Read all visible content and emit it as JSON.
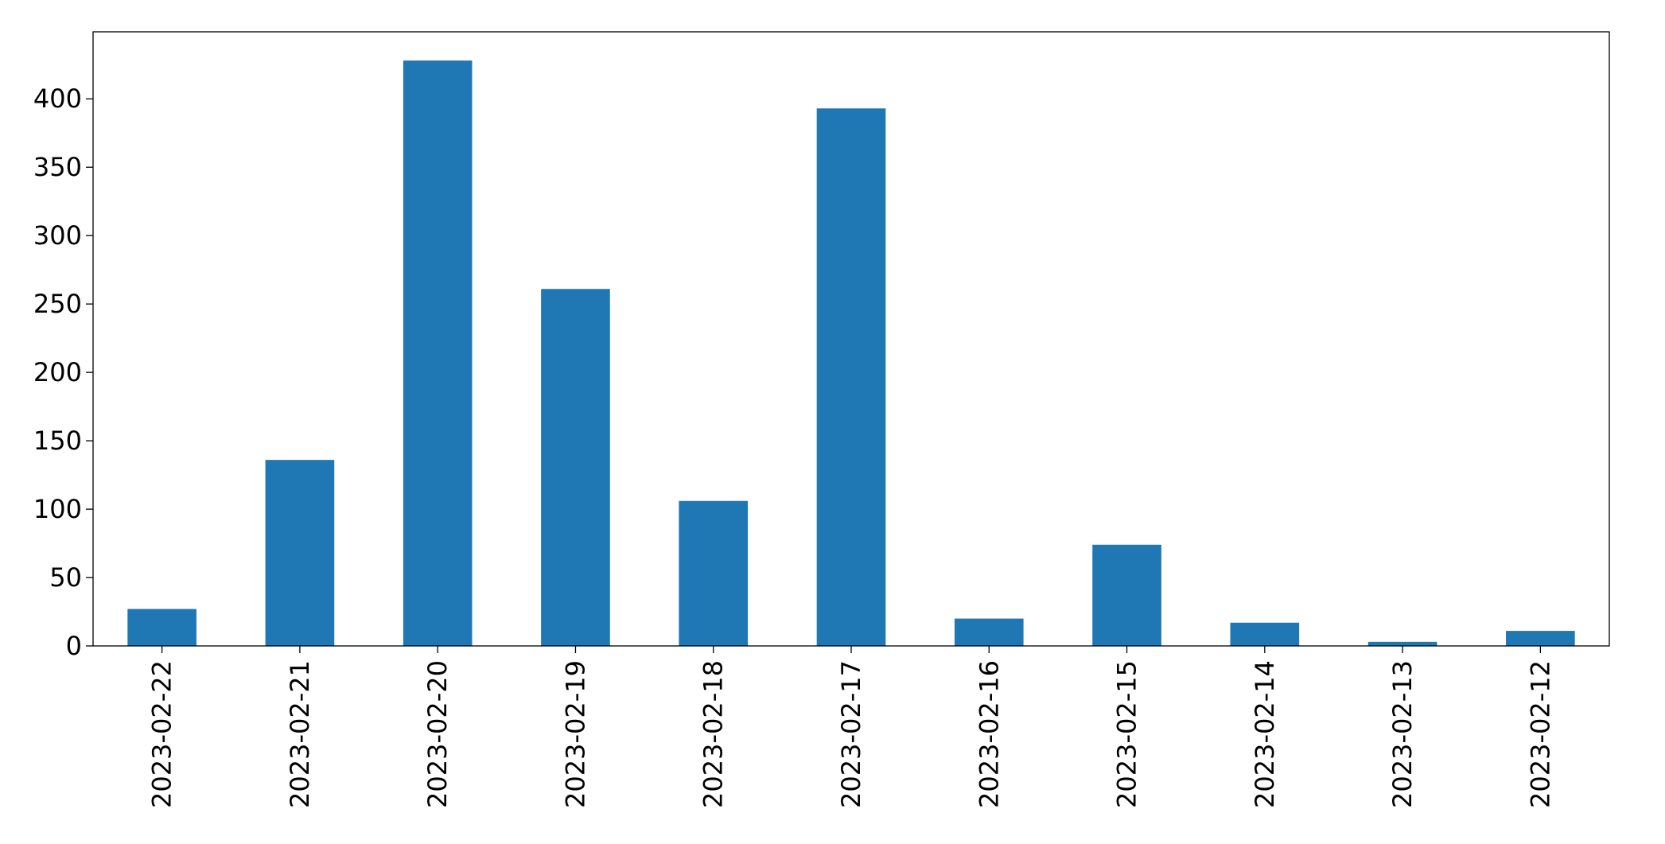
{
  "chart_data": {
    "type": "bar",
    "title": "",
    "xlabel": "",
    "ylabel": "",
    "categories": [
      "2023-02-22",
      "2023-02-21",
      "2023-02-20",
      "2023-02-19",
      "2023-02-18",
      "2023-02-17",
      "2023-02-16",
      "2023-02-15",
      "2023-02-14",
      "2023-02-13",
      "2023-02-12"
    ],
    "values": [
      27,
      136,
      428,
      261,
      106,
      393,
      20,
      74,
      17,
      3,
      11
    ],
    "ylim": [
      0,
      449
    ],
    "yticks": [
      0,
      50,
      100,
      150,
      200,
      250,
      300,
      350,
      400
    ],
    "bar_color": "#1f77b4",
    "grid": false,
    "legend": "none"
  }
}
